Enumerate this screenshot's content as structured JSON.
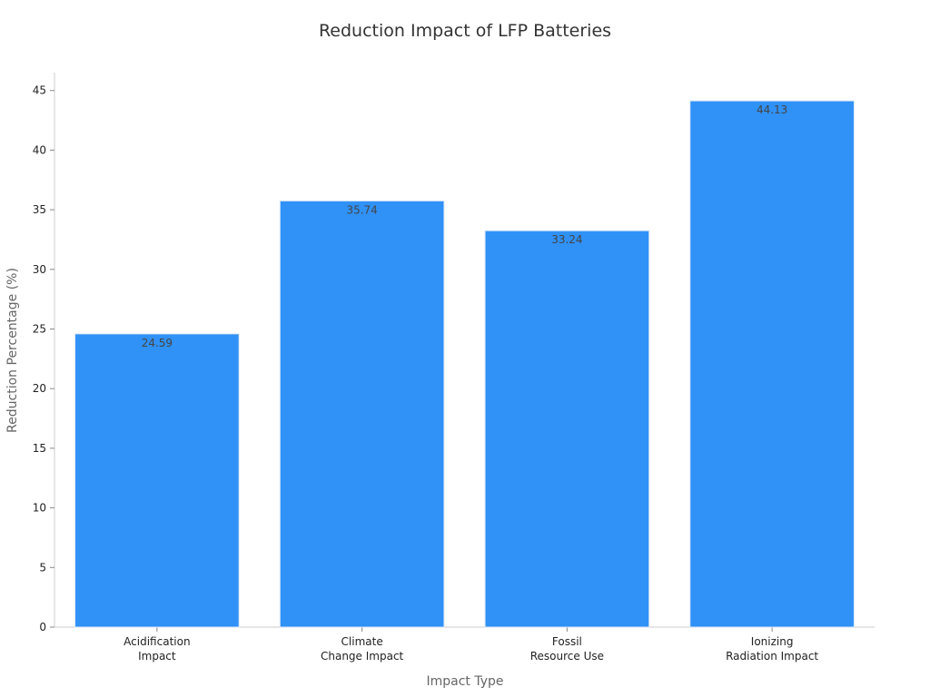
{
  "chart_data": {
    "type": "bar",
    "title": "Reduction Impact of LFP Batteries",
    "xlabel": "Impact Type",
    "ylabel": "Reduction Percentage (%)",
    "categories": [
      [
        "Acidification",
        "Impact"
      ],
      [
        "Climate",
        "Change Impact"
      ],
      [
        "Fossil",
        "Resource Use"
      ],
      [
        "Ionizing",
        "Radiation Impact"
      ]
    ],
    "values": [
      24.59,
      35.74,
      33.24,
      44.13
    ],
    "data_labels": [
      "24.59",
      "35.74",
      "33.24",
      "44.13"
    ],
    "ylim": [
      0,
      46.5
    ],
    "yticks": [
      0,
      5,
      10,
      15,
      20,
      25,
      30,
      35,
      40,
      45
    ],
    "bar_color": "#3091f7",
    "grid": false,
    "legend": "none"
  }
}
